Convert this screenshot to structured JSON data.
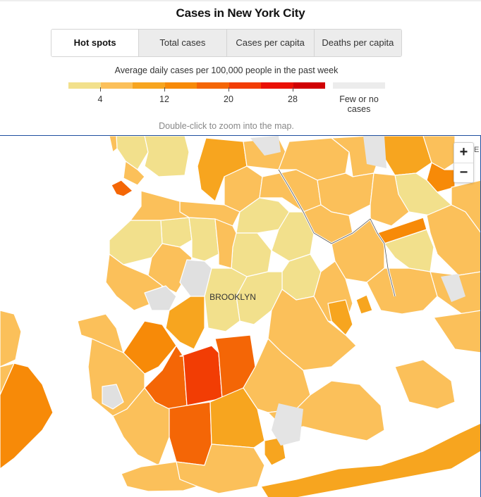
{
  "title": "Cases in New York City",
  "tabs": [
    {
      "label": "Hot spots",
      "active": true
    },
    {
      "label": "Total cases",
      "active": false
    },
    {
      "label": "Cases per capita",
      "active": false
    },
    {
      "label": "Deaths per capita",
      "active": false
    }
  ],
  "legend": {
    "subtitle": "Average daily cases per 100,000 people in the past week",
    "colors": [
      "#f2e08c",
      "#fbc05a",
      "#f7a51f",
      "#f78a08",
      "#f46606",
      "#f23d04",
      "#ea1004",
      "#d00103"
    ],
    "ticks": [
      "4",
      "12",
      "20",
      "28"
    ],
    "few_color": "#ececec",
    "few_label": "Few or no cases"
  },
  "hint": "Double-click to zoom into the map.",
  "map": {
    "label": "BROOKLYN",
    "zoom_in": "+",
    "zoom_out": "−",
    "edge_text": "E",
    "colors": {
      "water": "#ffffff",
      "no_data": "#e0e0e0",
      "border": "#ffffff"
    }
  }
}
